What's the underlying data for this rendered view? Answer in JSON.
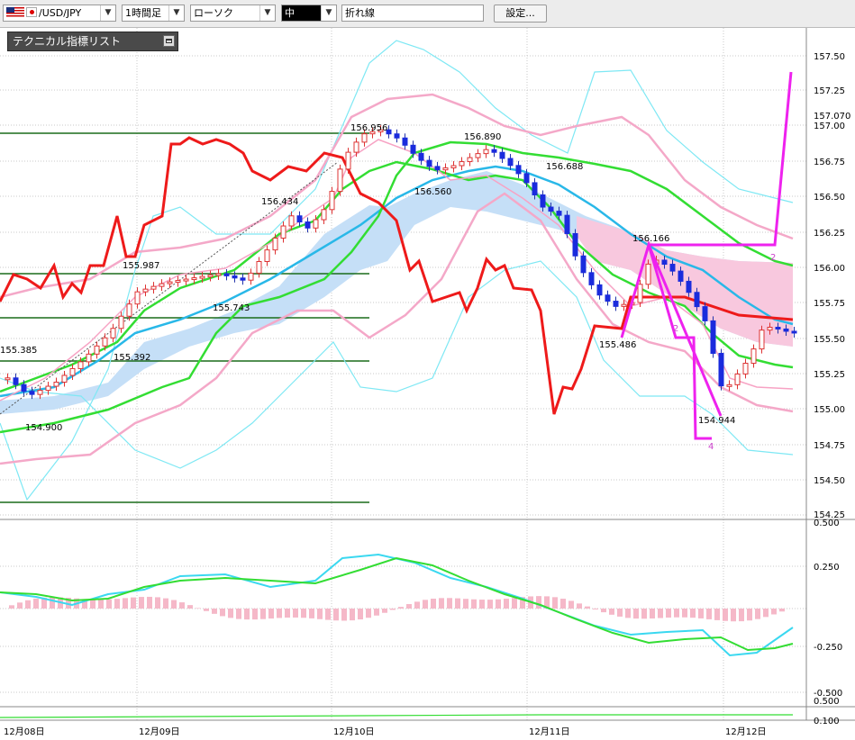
{
  "toolbar": {
    "symbol": "/USD/JPY",
    "timeframe": "1時間足",
    "chart_style": "ローソク",
    "color_mode": "中",
    "overlay": "折れ線",
    "settings_label": "設定..."
  },
  "indicator_panel": {
    "title": "テクニカル指標リスト"
  },
  "chart_data": [
    {
      "type": "candlestick",
      "title": "",
      "y_ticks": [
        "157.50",
        "157.25",
        "157.00",
        "156.75",
        "156.50",
        "156.25",
        "156.00",
        "155.75",
        "155.50",
        "155.25",
        "155.00",
        "154.75",
        "154.50",
        "154.25"
      ],
      "current_price": "157.070",
      "ylim": [
        154.25,
        157.55
      ],
      "x_labels": [
        "12月08日",
        "12月09日",
        "12月10日",
        "12月11日",
        "12月12日"
      ],
      "annotations": [
        "155.385",
        "154.900",
        "155.987",
        "155.743",
        "155.392",
        "156.434",
        "156.956",
        "156.560",
        "156.890",
        "156.688",
        "156.166",
        "155.486",
        "154.944"
      ],
      "wave_labels": [
        "2",
        "2",
        "4"
      ],
      "grid": true
    },
    {
      "type": "line",
      "title": "",
      "y_ticks": [
        "0.500",
        "0.250",
        "-0.250",
        "-0.500"
      ],
      "ylim": [
        -0.5,
        0.5
      ]
    },
    {
      "type": "line",
      "y_ticks": [
        "0.500",
        "0.100"
      ]
    }
  ]
}
